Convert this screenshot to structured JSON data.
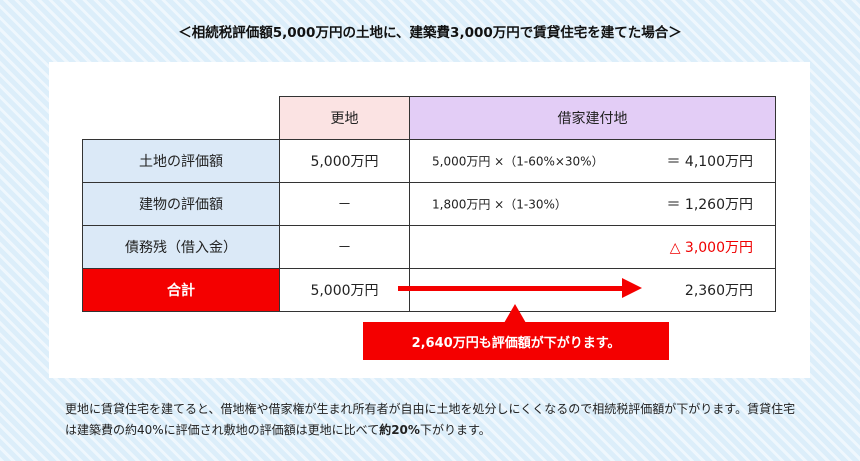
{
  "title": "＜相続税評価額5,000万円の土地に、建築費3,000万円で賃貸住宅を建てた場合＞",
  "table": {
    "col_sarachi": "更地",
    "col_shakuya": "借家建付地",
    "rows": [
      {
        "label": "土地の評価額",
        "sarachi": "5,000万円",
        "formula": "5,000万円 ×（1-60%×30%）",
        "result": "＝ 4,100万円"
      },
      {
        "label": "建物の評価額",
        "sarachi": "－",
        "formula": "1,800万円 ×（1-30%）",
        "result": "＝ 1,260万円"
      },
      {
        "label": "債務残（借入金）",
        "sarachi": "－",
        "formula": "",
        "result": "△ 3,000万円"
      }
    ],
    "total": {
      "label": "合計",
      "sarachi": "5,000万円",
      "shakuya": "2,360万円"
    }
  },
  "callout": "2,640万円も評価額が下がります。",
  "description": {
    "part1": "更地に賃貸住宅を建てると、借地権や借家権が生まれ所有者が自由に土地を処分しにくくなるので相続税評価額が下がります。賃貸住宅は建築費の約40%に評価され敷地の評価額は更地に比べて",
    "emphasis": "約20%",
    "part2": "下がります。"
  },
  "colors": {
    "accent_red": "#f40000",
    "sarachi_header": "#fbe3e3",
    "shakuya_header": "#e3cdf6",
    "row_label_bg": "#dbe9f7",
    "background": "#dceefa"
  }
}
